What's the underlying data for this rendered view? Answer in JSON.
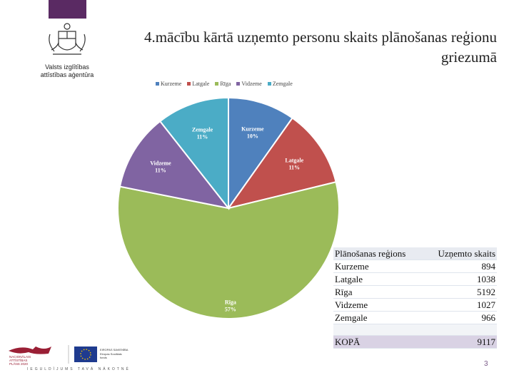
{
  "slide": {
    "title": "4.mācību kārtā uzņemto personu skaits plānošanas reģionu griezumā",
    "agency": "Valsts izglītības attīstības aģentūra",
    "page_number": "3",
    "footer_motto": "IEGULDĪJUMS TAVĀ NĀKOTNĒ"
  },
  "chart_data": {
    "type": "pie",
    "title": "",
    "legend_position": "top",
    "categories": [
      "Kurzeme",
      "Latgale",
      "Rīga",
      "Vidzeme",
      "Zemgale"
    ],
    "values": [
      894,
      1038,
      5192,
      1027,
      966
    ],
    "percent_labels": [
      "10%",
      "11%",
      "57%",
      "11%",
      "11%"
    ],
    "colors": [
      "#4f81bd",
      "#c0504d",
      "#9bbb59",
      "#8064a2",
      "#4bacc6"
    ]
  },
  "table": {
    "headers": [
      "Plānošanas reģions",
      "Uzņemto skaits"
    ],
    "rows": [
      [
        "Kurzeme",
        "894"
      ],
      [
        "Latgale",
        "1038"
      ],
      [
        "Rīga",
        "5192"
      ],
      [
        "Vidzeme",
        "1027"
      ],
      [
        "Zemgale",
        "966"
      ]
    ],
    "total": [
      "KOPĀ",
      "9117"
    ]
  },
  "footer_logos": {
    "left_logo_text": [
      "NACIONĀLAIS",
      "ATTĪSTĪBAS",
      "PLĀNS 2020"
    ],
    "eu_logo_text": [
      "EIROPAS SAVIENĪBA",
      "Eiropas Sociālais",
      "fonds"
    ]
  }
}
